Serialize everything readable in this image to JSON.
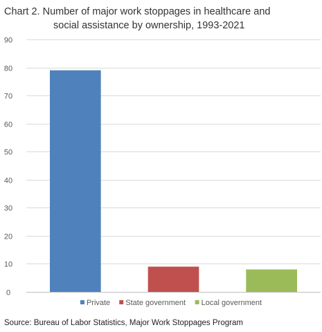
{
  "chart_data": {
    "type": "bar",
    "title_line1": "Chart 2. Number of major work stoppages in healthcare and",
    "title_line2": "social assistance by ownership, 1993-2021",
    "categories": [
      "Private",
      "State government",
      "Local government"
    ],
    "values": [
      79,
      9,
      8
    ],
    "colors": [
      "#4f81bd",
      "#c0504d",
      "#9bbb59"
    ],
    "ylim": [
      0,
      90
    ],
    "yticks": [
      0,
      10,
      20,
      30,
      40,
      50,
      60,
      70,
      80,
      90
    ],
    "grid": true,
    "legend_position": "bottom",
    "xlabel": "",
    "ylabel": ""
  },
  "source": "Source: Bureau of Labor Statistics, Major Work Stoppages Program"
}
